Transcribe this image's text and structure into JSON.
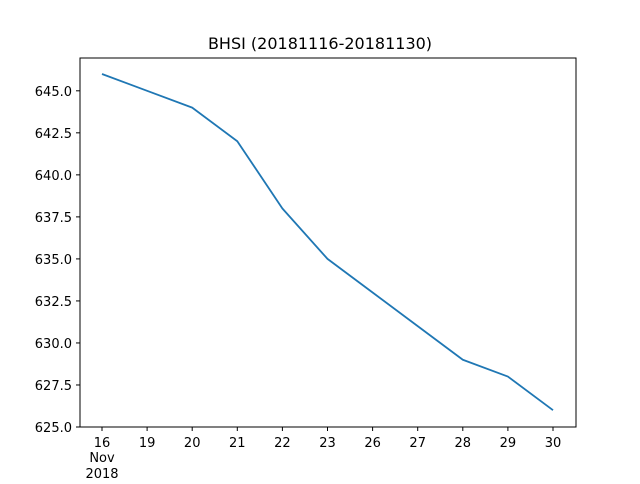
{
  "chart_data": {
    "type": "line",
    "title": "BHSI (20181116-20181130)",
    "xlabel": "",
    "ylabel": "",
    "x": [
      "16",
      "19",
      "20",
      "21",
      "22",
      "23",
      "26",
      "27",
      "28",
      "29",
      "30"
    ],
    "x_sublabel": {
      "month": "Nov",
      "year": "2018"
    },
    "series": [
      {
        "values": [
          646,
          645,
          644,
          642,
          638,
          635,
          633,
          631,
          629,
          628,
          626
        ]
      }
    ],
    "ylim": [
      625.0,
      646.0
    ],
    "yticks": [
      "625.0",
      "627.5",
      "630.0",
      "632.5",
      "635.0",
      "637.5",
      "640.0",
      "642.5",
      "645.0"
    ],
    "grid": false,
    "line_color": "#1f77b4"
  }
}
